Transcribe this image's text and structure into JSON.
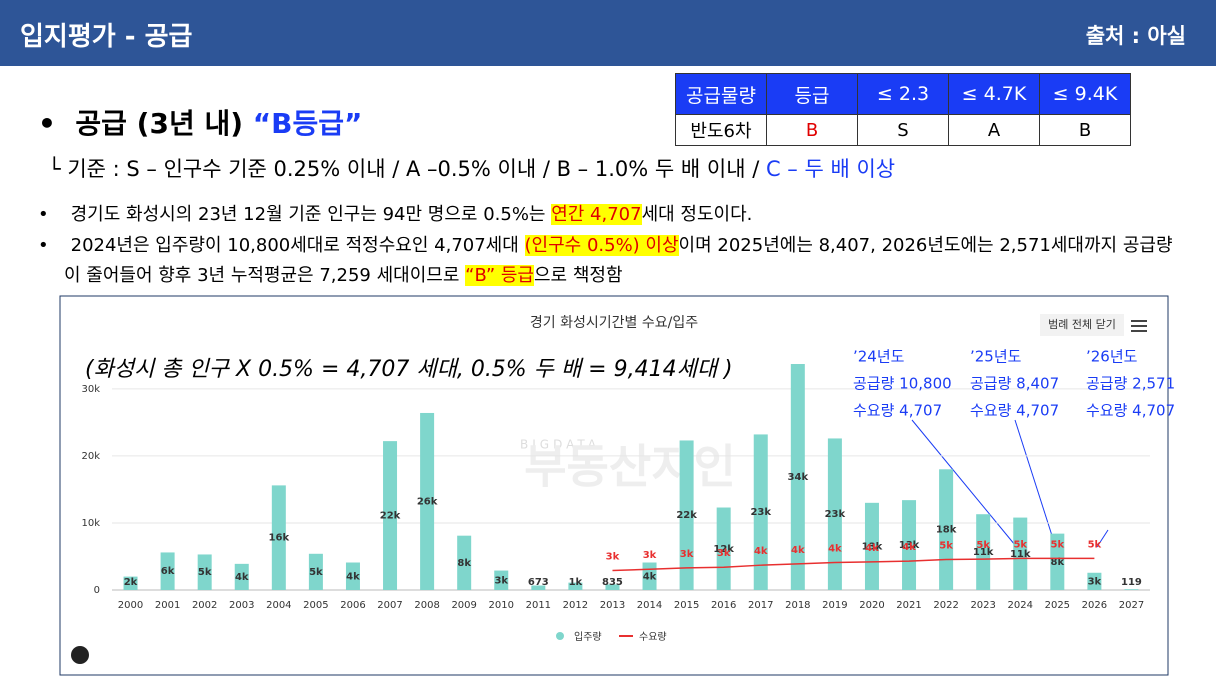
{
  "header": {
    "title": "입지평가 - 공급",
    "source": "출처 : 아실"
  },
  "grade_table": {
    "header": [
      "공급물량",
      "등급",
      "≤ 2.3",
      "≤ 4.7K",
      "≤ 9.4K"
    ],
    "rows": [
      [
        "반도6차",
        "B",
        "S",
        "A",
        "B"
      ]
    ]
  },
  "summary": [
    "공급 (3년 내) ",
    "“B등급”"
  ],
  "criteria": [
    "└ 기준 : S – 인구수 기준 0.25% 이내 / A –0.5% 이내 / B – 1.0% 두 배 이내 / ",
    "C – 두 배 이상"
  ],
  "bullets": [
    [
      "경기도 화성시의 23년 12월 기준 인구는 94만 명으로 0.5%는 ",
      "연간 4,707",
      "세대 정도이다."
    ],
    [
      "2024년은 입주량이 10,800세대로 적정수요인 4,707세대 ",
      "(인구수 0.5%) 이상",
      "이며 2025년에는 8,407, 2026년도에는 2,571세대까지 공급량이 줄어들어 향후 3년 누적평균은 7,259 세대이므로 ",
      "“B” 등급",
      "으로 책정함"
    ]
  ],
  "chart_data": {
    "type": "bar",
    "title": "경기 화성시기간별 수요/입주",
    "legend_button": "범례 전체 닫기",
    "watermark": [
      "BIGDATA",
      "부동산지인"
    ],
    "annotation": "(화성시 총 인구 X 0.5% = 4,707 세대, 0.5% 두 배 = 9,414세대 )",
    "callouts": [
      [
        "’24년도",
        "공급량 10,800",
        "수요량 4,707"
      ],
      [
        "’25년도",
        "공급량 8,407",
        "수요량 4,707"
      ],
      [
        "’26년도",
        "공급량 2,571",
        "수요량 4,707"
      ]
    ],
    "categories": [
      "2000",
      "2001",
      "2002",
      "2003",
      "2004",
      "2005",
      "2006",
      "2007",
      "2008",
      "2009",
      "2010",
      "2011",
      "2012",
      "2013",
      "2014",
      "2015",
      "2016",
      "2017",
      "2018",
      "2019",
      "2020",
      "2021",
      "2022",
      "2023",
      "2024",
      "2025",
      "2026",
      "2027"
    ],
    "series": [
      {
        "name": "입주량",
        "type": "bar",
        "color": "#7fd6cc",
        "values": [
          2000,
          5600,
          5300,
          3900,
          15600,
          5400,
          4100,
          22200,
          26400,
          8100,
          2900,
          673,
          1100,
          835,
          4100,
          22300,
          12300,
          23200,
          33700,
          22600,
          13000,
          13400,
          18000,
          11300,
          10800,
          8407,
          2571,
          119
        ],
        "value_labels": [
          "2k",
          "6k",
          "5k",
          "4k",
          "16k",
          "5k",
          "4k",
          "22k",
          "26k",
          "8k",
          "3k",
          "673",
          "1k",
          "835",
          "4k",
          "22k",
          "12k",
          "23k",
          "34k",
          "23k",
          "13k",
          "13k",
          "18k",
          "11k",
          "11k",
          "8k",
          "3k",
          "119"
        ]
      },
      {
        "name": "수요량",
        "type": "line",
        "color": "#e83030",
        "values": [
          null,
          null,
          null,
          null,
          null,
          null,
          null,
          null,
          null,
          null,
          null,
          null,
          null,
          2900,
          3100,
          3300,
          3400,
          3700,
          3900,
          4100,
          4200,
          4300,
          4550,
          4600,
          4707,
          4707,
          4707,
          null
        ],
        "value_labels": [
          null,
          null,
          null,
          null,
          null,
          null,
          null,
          null,
          null,
          null,
          null,
          null,
          null,
          "3k",
          "3k",
          "3k",
          "3k",
          "4k",
          "4k",
          "4k",
          "4k",
          "4k",
          "5k",
          "5k",
          "5k",
          "5k",
          "5k",
          null
        ]
      }
    ],
    "ylim": [
      0,
      34000
    ],
    "yticks": [
      0,
      {
        "value": 10000,
        "label": "10k"
      },
      {
        "value": 20000,
        "label": "20k"
      },
      {
        "value": 30000,
        "label": "30k"
      }
    ],
    "grid": true
  }
}
